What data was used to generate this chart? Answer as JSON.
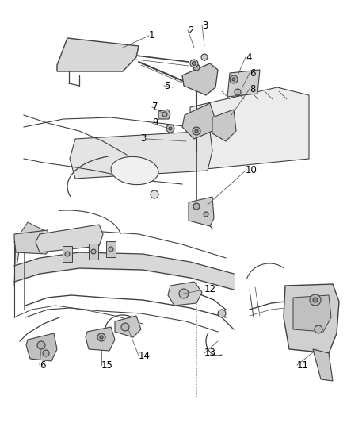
{
  "bg_color": "#ffffff",
  "line_color": "#404040",
  "label_color": "#000000",
  "font_size": 8.5,
  "fig_width": 4.38,
  "fig_height": 5.33,
  "dpi": 100
}
